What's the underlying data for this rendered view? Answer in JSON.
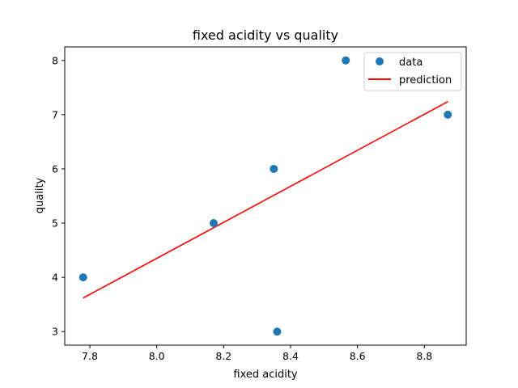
{
  "chart_data": {
    "type": "scatter",
    "title": "fixed acidity vs quality",
    "xlabel": "fixed acidity",
    "ylabel": "quality",
    "xlim": [
      7.725,
      8.925
    ],
    "ylim": [
      2.75,
      8.25
    ],
    "xticks": [
      7.8,
      8.0,
      8.2,
      8.4,
      8.6,
      8.8
    ],
    "xtick_labels": [
      "7.8",
      "8.0",
      "8.2",
      "8.4",
      "8.6",
      "8.8"
    ],
    "yticks": [
      3,
      4,
      5,
      6,
      7,
      8
    ],
    "ytick_labels": [
      "3",
      "4",
      "5",
      "6",
      "7",
      "8"
    ],
    "grid": false,
    "legend_position": "top-right",
    "series": [
      {
        "name": "data",
        "kind": "scatter",
        "color": "#1f77b4",
        "points": [
          {
            "x": 7.78,
            "y": 4
          },
          {
            "x": 8.17,
            "y": 5
          },
          {
            "x": 8.35,
            "y": 6
          },
          {
            "x": 8.36,
            "y": 3
          },
          {
            "x": 8.565,
            "y": 8
          },
          {
            "x": 8.87,
            "y": 7
          }
        ]
      },
      {
        "name": "prediction",
        "kind": "line",
        "color": "#ff0000",
        "points": [
          {
            "x": 7.78,
            "y": 3.62
          },
          {
            "x": 8.87,
            "y": 7.24
          }
        ]
      }
    ]
  }
}
